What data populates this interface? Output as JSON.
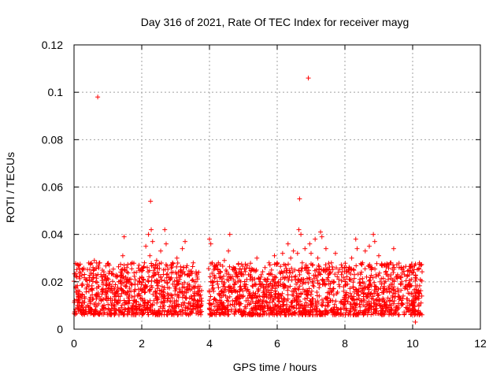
{
  "chart_data": {
    "type": "scatter",
    "title": "Day 316 of 2021, Rate Of TEC Index for receiver mayg",
    "xlabel": "GPS time / hours",
    "ylabel": "ROTI / TECUs",
    "xlim": [
      0,
      12
    ],
    "ylim": [
      0,
      0.12
    ],
    "xticks": [
      0,
      2,
      4,
      6,
      8,
      10,
      12
    ],
    "xtick_labels": [
      "0",
      "2",
      "4",
      "6",
      "8",
      "10",
      "12"
    ],
    "yticks": [
      0,
      0.02,
      0.04,
      0.06,
      0.08,
      0.1,
      0.12
    ],
    "ytick_labels": [
      "0",
      "0.02",
      "0.04",
      "0.06",
      "0.08",
      "0.1",
      "0.12"
    ],
    "grid": true,
    "marker": "+",
    "color": "#ff0000",
    "series": [
      {
        "name": "ROTI",
        "points": [
          [
            0.02,
            0.012
          ],
          [
            0.05,
            0.018
          ],
          [
            0.08,
            0.022
          ],
          [
            0.1,
            0.009
          ],
          [
            0.13,
            0.015
          ],
          [
            0.16,
            0.011
          ],
          [
            0.2,
            0.014
          ],
          [
            0.24,
            0.019
          ],
          [
            0.28,
            0.008
          ],
          [
            0.32,
            0.013
          ],
          [
            0.36,
            0.017
          ],
          [
            0.4,
            0.01
          ],
          [
            0.44,
            0.016
          ],
          [
            0.48,
            0.012
          ],
          [
            0.52,
            0.021
          ],
          [
            0.56,
            0.026
          ],
          [
            0.6,
            0.029
          ],
          [
            0.63,
            0.011
          ],
          [
            0.66,
            0.014
          ],
          [
            0.7,
            0.098
          ],
          [
            0.72,
            0.018
          ],
          [
            0.76,
            0.028
          ],
          [
            0.8,
            0.012
          ],
          [
            0.84,
            0.016
          ],
          [
            0.88,
            0.009
          ],
          [
            0.92,
            0.022
          ],
          [
            0.96,
            0.014
          ],
          [
            1.0,
            0.019
          ],
          [
            1.04,
            0.027
          ],
          [
            1.08,
            0.013
          ],
          [
            1.12,
            0.011
          ],
          [
            1.16,
            0.023
          ],
          [
            1.2,
            0.017
          ],
          [
            1.24,
            0.008
          ],
          [
            1.28,
            0.015
          ],
          [
            1.32,
            0.02
          ],
          [
            1.36,
            0.012
          ],
          [
            1.4,
            0.025
          ],
          [
            1.44,
            0.031
          ],
          [
            1.48,
            0.039
          ],
          [
            1.52,
            0.018
          ],
          [
            1.56,
            0.026
          ],
          [
            1.6,
            0.013
          ],
          [
            1.64,
            0.021
          ],
          [
            1.68,
            0.016
          ],
          [
            1.72,
            0.028
          ],
          [
            1.76,
            0.011
          ],
          [
            1.8,
            0.019
          ],
          [
            1.84,
            0.024
          ],
          [
            1.88,
            0.014
          ],
          [
            1.92,
            0.027
          ],
          [
            1.96,
            0.017
          ],
          [
            2.0,
            0.022
          ],
          [
            2.04,
            0.012
          ],
          [
            2.08,
            0.028
          ],
          [
            2.12,
            0.035
          ],
          [
            2.16,
            0.018
          ],
          [
            2.2,
            0.04
          ],
          [
            2.24,
            0.031
          ],
          [
            2.26,
            0.054
          ],
          [
            2.28,
            0.042
          ],
          [
            2.32,
            0.037
          ],
          [
            2.36,
            0.024
          ],
          [
            2.4,
            0.016
          ],
          [
            2.44,
            0.029
          ],
          [
            2.48,
            0.013
          ],
          [
            2.52,
            0.02
          ],
          [
            2.56,
            0.033
          ],
          [
            2.6,
            0.018
          ],
          [
            2.64,
            0.025
          ],
          [
            2.68,
            0.042
          ],
          [
            2.72,
            0.036
          ],
          [
            2.76,
            0.015
          ],
          [
            2.8,
            0.022
          ],
          [
            2.84,
            0.012
          ],
          [
            2.88,
            0.027
          ],
          [
            2.92,
            0.019
          ],
          [
            2.96,
            0.011
          ],
          [
            3.0,
            0.024
          ],
          [
            3.04,
            0.03
          ],
          [
            3.08,
            0.014
          ],
          [
            3.12,
            0.021
          ],
          [
            3.16,
            0.016
          ],
          [
            3.2,
            0.034
          ],
          [
            3.24,
            0.026
          ],
          [
            3.28,
            0.037
          ],
          [
            3.32,
            0.013
          ],
          [
            3.36,
            0.019
          ],
          [
            3.4,
            0.023
          ],
          [
            3.44,
            0.011
          ],
          [
            3.48,
            0.017
          ],
          [
            3.52,
            0.028
          ],
          [
            3.56,
            0.014
          ],
          [
            3.6,
            0.02
          ],
          [
            3.64,
            0.012
          ],
          [
            3.68,
            0.016
          ],
          [
            3.72,
            0.018
          ],
          [
            3.76,
            0.013
          ],
          [
            4.0,
            0.038
          ],
          [
            4.04,
            0.036
          ],
          [
            4.08,
            0.028
          ],
          [
            4.12,
            0.016
          ],
          [
            4.16,
            0.022
          ],
          [
            4.2,
            0.012
          ],
          [
            4.24,
            0.019
          ],
          [
            4.28,
            0.015
          ],
          [
            4.32,
            0.024
          ],
          [
            4.36,
            0.011
          ],
          [
            4.4,
            0.018
          ],
          [
            4.44,
            0.029
          ],
          [
            4.48,
            0.014
          ],
          [
            4.52,
            0.021
          ],
          [
            4.56,
            0.033
          ],
          [
            4.6,
            0.04
          ],
          [
            4.64,
            0.017
          ],
          [
            4.68,
            0.012
          ],
          [
            4.72,
            0.025
          ],
          [
            4.76,
            0.016
          ],
          [
            4.8,
            0.013
          ],
          [
            4.84,
            0.02
          ],
          [
            4.88,
            0.011
          ],
          [
            4.92,
            0.018
          ],
          [
            4.96,
            0.023
          ],
          [
            5.0,
            0.014
          ],
          [
            5.04,
            0.019
          ],
          [
            5.08,
            0.012
          ],
          [
            5.12,
            0.027
          ],
          [
            5.16,
            0.016
          ],
          [
            5.2,
            0.021
          ],
          [
            5.24,
            0.013
          ],
          [
            5.28,
            0.018
          ],
          [
            5.32,
            0.025
          ],
          [
            5.36,
            0.011
          ],
          [
            5.4,
            0.03
          ],
          [
            5.44,
            0.017
          ],
          [
            5.48,
            0.014
          ],
          [
            5.52,
            0.022
          ],
          [
            5.56,
            0.019
          ],
          [
            5.6,
            0.012
          ],
          [
            5.64,
            0.026
          ],
          [
            5.68,
            0.016
          ],
          [
            5.72,
            0.021
          ],
          [
            5.76,
            0.028
          ],
          [
            5.8,
            0.013
          ],
          [
            5.84,
            0.023
          ],
          [
            5.88,
            0.018
          ],
          [
            5.92,
            0.031
          ],
          [
            5.96,
            0.015
          ],
          [
            6.0,
            0.028
          ],
          [
            6.04,
            0.02
          ],
          [
            6.08,
            0.024
          ],
          [
            6.12,
            0.014
          ],
          [
            6.16,
            0.032
          ],
          [
            6.2,
            0.018
          ],
          [
            6.24,
            0.027
          ],
          [
            6.28,
            0.012
          ],
          [
            6.32,
            0.036
          ],
          [
            6.36,
            0.022
          ],
          [
            6.4,
            0.03
          ],
          [
            6.44,
            0.016
          ],
          [
            6.48,
            0.033
          ],
          [
            6.52,
            0.025
          ],
          [
            6.56,
            0.019
          ],
          [
            6.6,
            0.032
          ],
          [
            6.64,
            0.042
          ],
          [
            6.66,
            0.055
          ],
          [
            6.7,
            0.04
          ],
          [
            6.74,
            0.028
          ],
          [
            6.78,
            0.021
          ],
          [
            6.82,
            0.034
          ],
          [
            6.86,
            0.016
          ],
          [
            6.9,
            0.024
          ],
          [
            6.92,
            0.106
          ],
          [
            6.96,
            0.036
          ],
          [
            7.0,
            0.032
          ],
          [
            7.04,
            0.027
          ],
          [
            7.08,
            0.018
          ],
          [
            7.12,
            0.038
          ],
          [
            7.16,
            0.022
          ],
          [
            7.2,
            0.03
          ],
          [
            7.24,
            0.014
          ],
          [
            7.28,
            0.041
          ],
          [
            7.32,
            0.039
          ],
          [
            7.36,
            0.025
          ],
          [
            7.4,
            0.019
          ],
          [
            7.44,
            0.034
          ],
          [
            7.48,
            0.013
          ],
          [
            7.52,
            0.023
          ],
          [
            7.56,
            0.017
          ],
          [
            7.6,
            0.028
          ],
          [
            7.64,
            0.012
          ],
          [
            7.68,
            0.02
          ],
          [
            7.72,
            0.032
          ],
          [
            7.76,
            0.015
          ],
          [
            7.8,
            0.024
          ],
          [
            7.84,
            0.018
          ],
          [
            7.88,
            0.011
          ],
          [
            7.92,
            0.026
          ],
          [
            7.96,
            0.016
          ],
          [
            8.0,
            0.021
          ],
          [
            8.04,
            0.013
          ],
          [
            8.08,
            0.019
          ],
          [
            8.12,
            0.025
          ],
          [
            8.16,
            0.014
          ],
          [
            8.2,
            0.03
          ],
          [
            8.24,
            0.018
          ],
          [
            8.28,
            0.023
          ],
          [
            8.32,
            0.038
          ],
          [
            8.36,
            0.034
          ],
          [
            8.4,
            0.016
          ],
          [
            8.44,
            0.021
          ],
          [
            8.48,
            0.012
          ],
          [
            8.52,
            0.028
          ],
          [
            8.56,
            0.017
          ],
          [
            8.6,
            0.033
          ],
          [
            8.64,
            0.022
          ],
          [
            8.68,
            0.014
          ],
          [
            8.72,
            0.035
          ],
          [
            8.76,
            0.019
          ],
          [
            8.8,
            0.026
          ],
          [
            8.84,
            0.04
          ],
          [
            8.88,
            0.037
          ],
          [
            8.92,
            0.023
          ],
          [
            8.96,
            0.015
          ],
          [
            9.0,
            0.031
          ],
          [
            9.04,
            0.02
          ],
          [
            9.08,
            0.027
          ],
          [
            9.12,
            0.013
          ],
          [
            9.16,
            0.018
          ],
          [
            9.2,
            0.024
          ],
          [
            9.24,
            0.016
          ],
          [
            9.28,
            0.021
          ],
          [
            9.32,
            0.012
          ],
          [
            9.36,
            0.028
          ],
          [
            9.4,
            0.019
          ],
          [
            9.44,
            0.034
          ],
          [
            9.48,
            0.015
          ],
          [
            9.52,
            0.022
          ],
          [
            9.56,
            0.017
          ],
          [
            9.6,
            0.026
          ],
          [
            9.64,
            0.013
          ],
          [
            9.68,
            0.02
          ],
          [
            9.72,
            0.014
          ],
          [
            9.76,
            0.023
          ],
          [
            9.8,
            0.018
          ],
          [
            9.84,
            0.011
          ],
          [
            9.88,
            0.019
          ],
          [
            9.92,
            0.015
          ],
          [
            9.96,
            0.021
          ],
          [
            10.0,
            0.012
          ],
          [
            10.04,
            0.008
          ],
          [
            10.08,
            0.003
          ],
          [
            10.12,
            0.016
          ],
          [
            10.16,
            0.013
          ],
          [
            10.2,
            0.028
          ],
          [
            10.24,
            0.027
          ],
          [
            10.27,
            0.014
          ]
        ]
      }
    ]
  }
}
